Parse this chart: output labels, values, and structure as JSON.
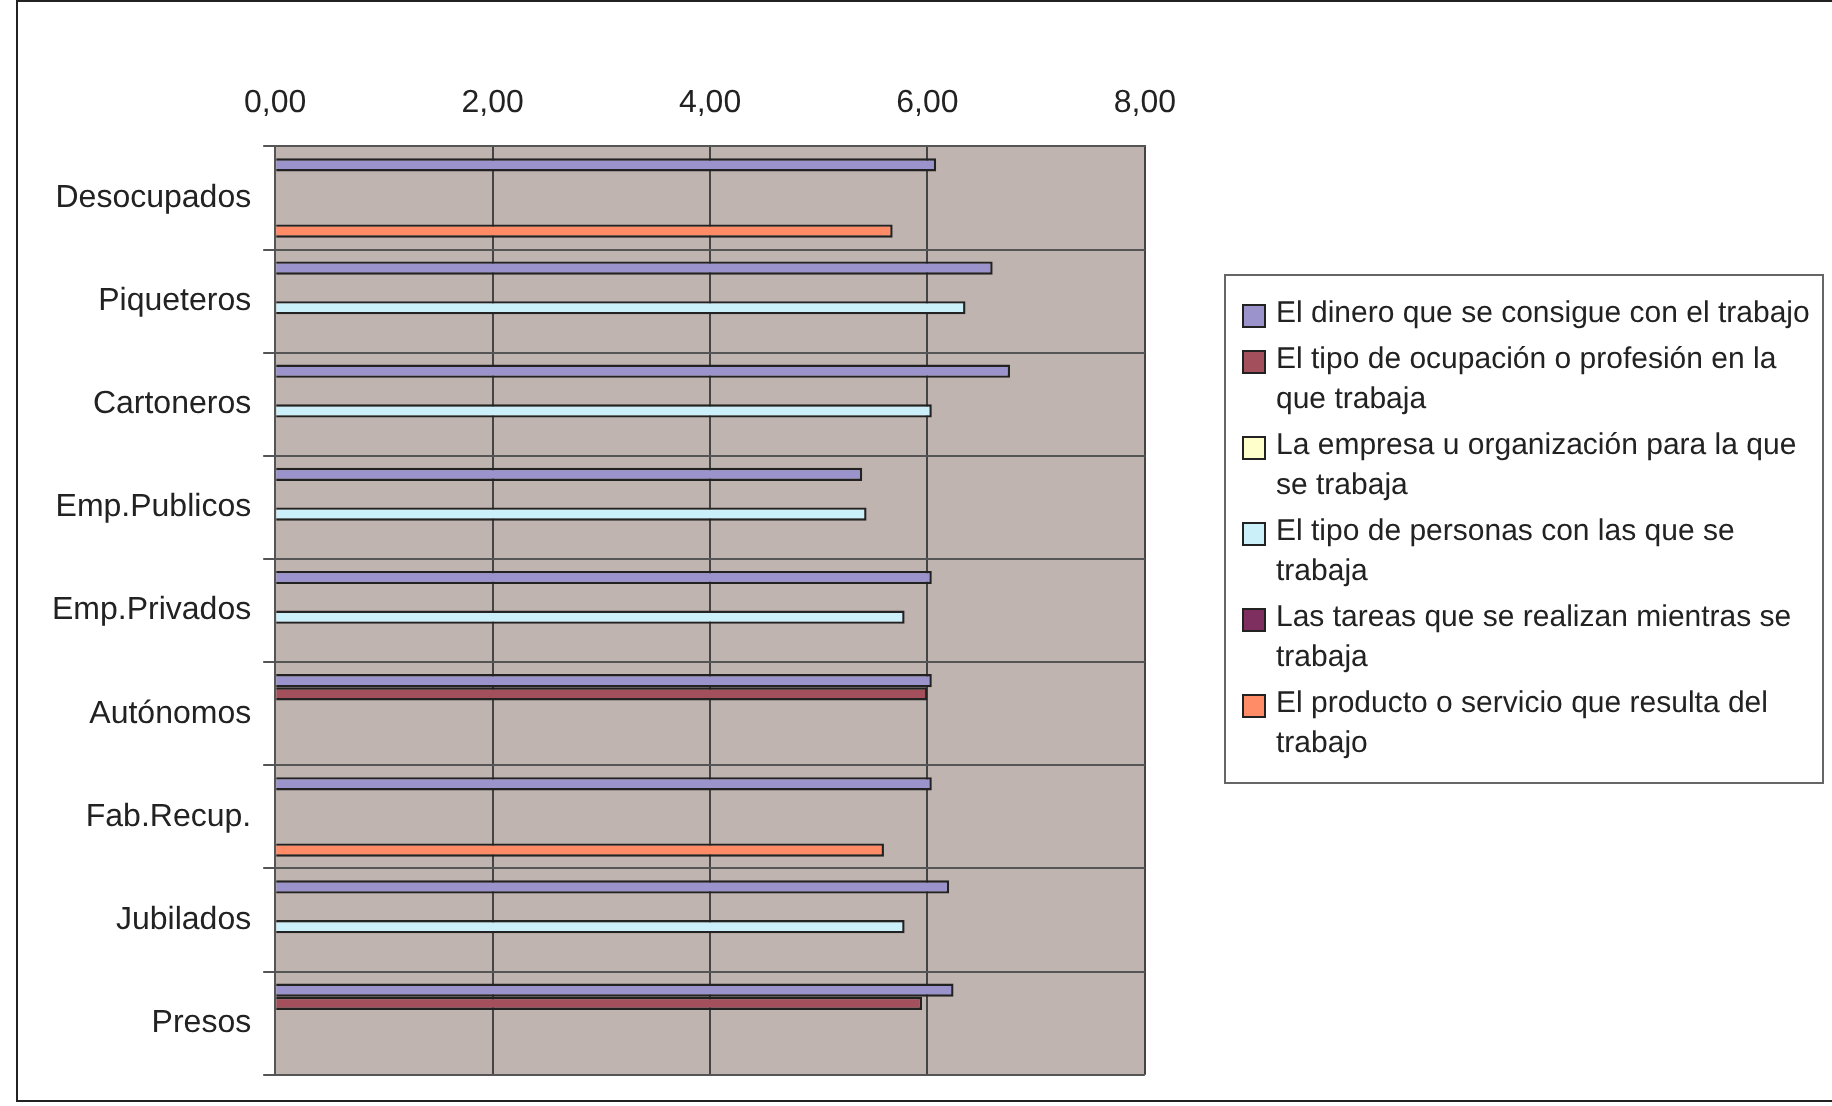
{
  "chart_data": {
    "type": "bar",
    "orientation": "horizontal",
    "categories": [
      "Desocupados",
      "Piqueteros",
      "Cartoneros",
      "Emp.Publicos",
      "Emp.Privados",
      "Autónomos",
      "Fab.Recup.",
      "Jubilados",
      "Presos"
    ],
    "series": [
      {
        "name": "El dinero que se consigue con el trabajo",
        "color": "#9b94cc",
        "values": [
          6.08,
          6.6,
          6.76,
          5.4,
          6.04,
          6.04,
          6.04,
          6.2,
          6.24
        ]
      },
      {
        "name": "El tipo de ocupación o profesión en la que trabaja",
        "color": "#a3505c",
        "values": [
          null,
          null,
          null,
          null,
          null,
          6.0,
          null,
          null,
          5.95
        ]
      },
      {
        "name": "La empresa u organización para la que se trabaja",
        "color": "#ffffcc",
        "values": [
          null,
          null,
          null,
          null,
          null,
          null,
          null,
          null,
          null
        ]
      },
      {
        "name": "El tipo de personas con las que se trabaja",
        "color": "#ccf0fa",
        "values": [
          null,
          6.35,
          6.04,
          5.44,
          5.79,
          null,
          null,
          5.79,
          null
        ]
      },
      {
        "name": "Las tareas que se realizan mientras se trabaja",
        "color": "#7f2f5f",
        "values": [
          null,
          null,
          null,
          null,
          null,
          null,
          null,
          null,
          null
        ]
      },
      {
        "name": "El producto o servicio que resulta del trabajo",
        "color": "#ff8c66",
        "values": [
          5.68,
          null,
          null,
          null,
          null,
          null,
          5.6,
          null,
          null
        ]
      }
    ],
    "xlim": [
      0,
      8
    ],
    "xticks": [
      {
        "value": 0,
        "label": "0,00"
      },
      {
        "value": 2,
        "label": "2,00"
      },
      {
        "value": 4,
        "label": "4,00"
      },
      {
        "value": 6,
        "label": "6,00"
      },
      {
        "value": 8,
        "label": "8,00"
      }
    ],
    "grid": true,
    "legend": "right"
  }
}
